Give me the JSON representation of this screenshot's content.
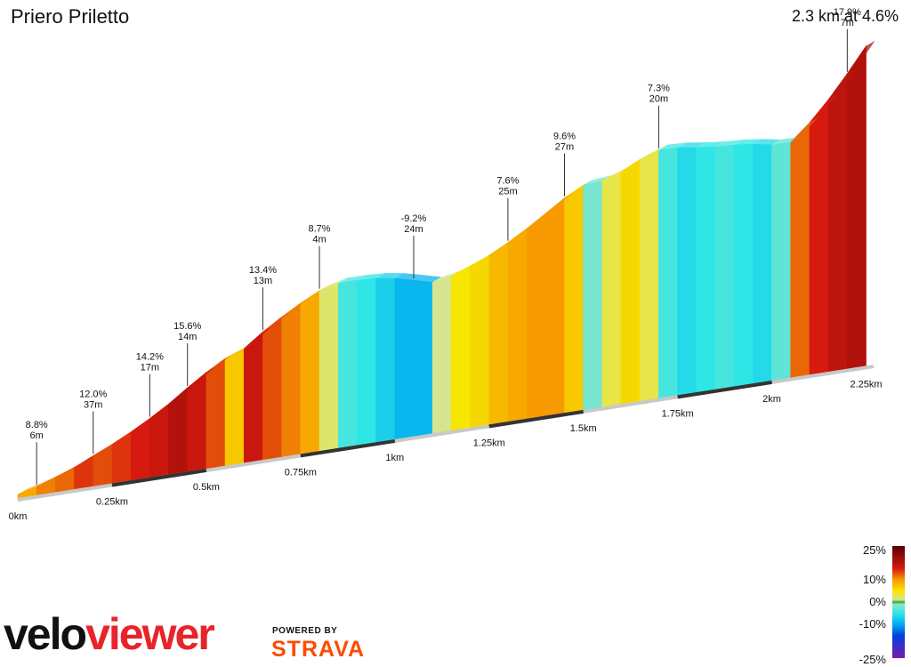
{
  "header": {
    "title": "Priero Priletto",
    "summary": "2.3 km at 4.6%"
  },
  "chart_data": {
    "type": "area",
    "x_unit": "km",
    "total_distance_km": 2.3,
    "avg_gradient_pct": 4.6,
    "distance_ticks": [
      "0km",
      "0.25km",
      "0.5km",
      "0.75km",
      "1km",
      "1.25km",
      "1.5km",
      "1.75km",
      "2km",
      "2.25km"
    ],
    "profile": [
      {
        "d": 0.0,
        "g": 8
      },
      {
        "d": 0.05,
        "g": 9
      },
      {
        "d": 0.1,
        "g": 11
      },
      {
        "d": 0.15,
        "g": 12
      },
      {
        "d": 0.2,
        "g": 14
      },
      {
        "d": 0.25,
        "g": 13
      },
      {
        "d": 0.3,
        "g": 14
      },
      {
        "d": 0.35,
        "g": 15
      },
      {
        "d": 0.4,
        "g": 16
      },
      {
        "d": 0.45,
        "g": 18
      },
      {
        "d": 0.5,
        "g": 16
      },
      {
        "d": 0.55,
        "g": 13
      },
      {
        "d": 0.6,
        "g": 7
      },
      {
        "d": 0.65,
        "g": 16
      },
      {
        "d": 0.7,
        "g": 13
      },
      {
        "d": 0.75,
        "g": 11
      },
      {
        "d": 0.8,
        "g": 9
      },
      {
        "d": 0.85,
        "g": 2
      },
      {
        "d": 0.9,
        "g": -4
      },
      {
        "d": 0.95,
        "g": -5
      },
      {
        "d": 1.0,
        "g": -7
      },
      {
        "d": 1.05,
        "g": -9
      },
      {
        "d": 1.1,
        "g": -9
      },
      {
        "d": 1.15,
        "g": 1
      },
      {
        "d": 1.2,
        "g": 5
      },
      {
        "d": 1.25,
        "g": 6
      },
      {
        "d": 1.3,
        "g": 8
      },
      {
        "d": 1.35,
        "g": 9
      },
      {
        "d": 1.4,
        "g": 10
      },
      {
        "d": 1.45,
        "g": 10
      },
      {
        "d": 1.5,
        "g": 7
      },
      {
        "d": 1.55,
        "g": -2
      },
      {
        "d": 1.6,
        "g": 3
      },
      {
        "d": 1.65,
        "g": 6
      },
      {
        "d": 1.7,
        "g": 3
      },
      {
        "d": 1.75,
        "g": -4
      },
      {
        "d": 1.8,
        "g": -6
      },
      {
        "d": 1.85,
        "g": -5
      },
      {
        "d": 1.9,
        "g": -4
      },
      {
        "d": 1.95,
        "g": -5
      },
      {
        "d": 2.0,
        "g": -6
      },
      {
        "d": 2.05,
        "g": -3
      },
      {
        "d": 2.1,
        "g": 12
      },
      {
        "d": 2.15,
        "g": 15
      },
      {
        "d": 2.2,
        "g": 17
      },
      {
        "d": 2.25,
        "g": 18
      }
    ],
    "annotations": [
      {
        "d": 0.04,
        "grade": "8.8%",
        "len": "6m"
      },
      {
        "d": 0.18,
        "grade": "12.0%",
        "len": "37m"
      },
      {
        "d": 0.35,
        "grade": "14.2%",
        "len": "17m"
      },
      {
        "d": 0.47,
        "grade": "15.6%",
        "len": "14m"
      },
      {
        "d": 0.66,
        "grade": "13.4%",
        "len": "13m"
      },
      {
        "d": 0.78,
        "grade": "8.7%",
        "len": "4m"
      },
      {
        "d": 1.05,
        "grade": "-9.2%",
        "len": "24m"
      },
      {
        "d": 1.3,
        "grade": "7.6%",
        "len": "25m"
      },
      {
        "d": 1.46,
        "grade": "9.6%",
        "len": "27m"
      },
      {
        "d": 1.68,
        "grade": "7.3%",
        "len": "20m"
      },
      {
        "d": 2.2,
        "grade": "17.9%",
        "len": "7m"
      }
    ],
    "legend": {
      "title": "",
      "labels": [
        "25%",
        "10%",
        "0%",
        "-10%",
        "-25%"
      ],
      "stops": [
        {
          "g": 25,
          "color": "#5a0000"
        },
        {
          "g": 15,
          "color": "#d61a10"
        },
        {
          "g": 10,
          "color": "#f79a00"
        },
        {
          "g": 5,
          "color": "#f7e600"
        },
        {
          "g": 1,
          "color": "#d7e48f"
        },
        {
          "g": 0,
          "color": "#26b02c"
        },
        {
          "g": -1,
          "color": "#8fe4c8"
        },
        {
          "g": -5,
          "color": "#2ee6e6"
        },
        {
          "g": -10,
          "color": "#00aaf0"
        },
        {
          "g": -15,
          "color": "#0040e0"
        },
        {
          "g": -25,
          "color": "#7a1aa8"
        }
      ]
    }
  },
  "branding": {
    "logo_part1": "velo",
    "logo_part2": "viewer",
    "powered_by": "POWERED BY",
    "strava": "STRAVA"
  }
}
